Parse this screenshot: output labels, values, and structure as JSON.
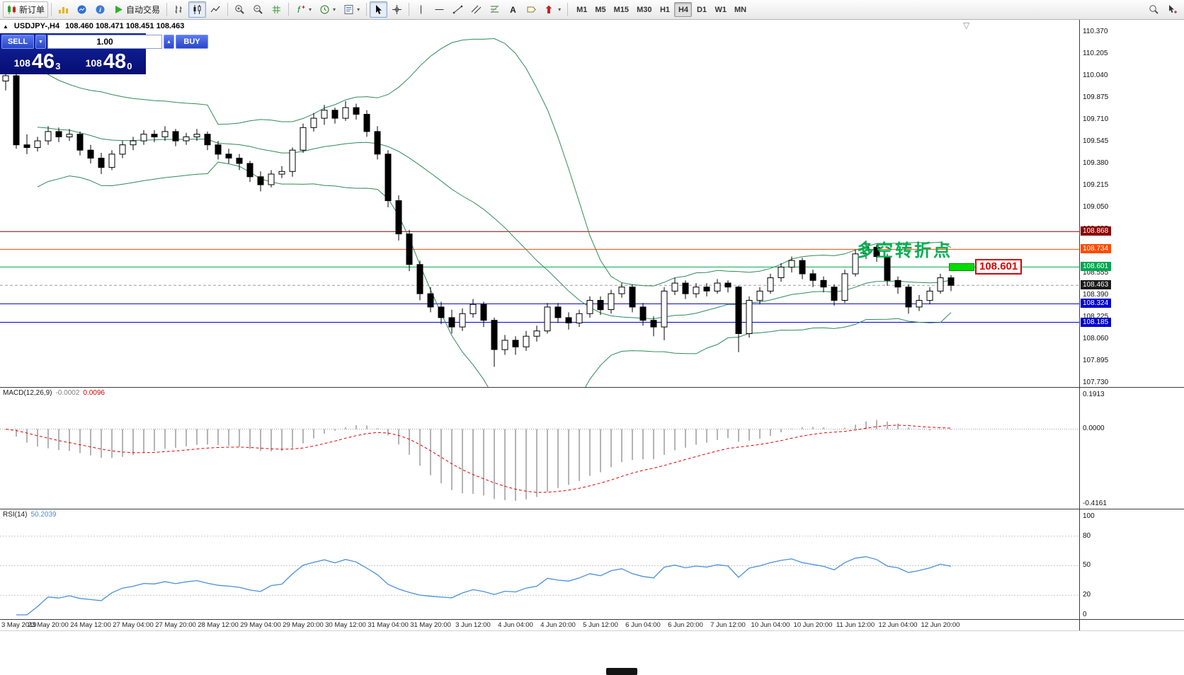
{
  "toolbar": {
    "new_order_label": "新订单",
    "autotrading_label": "自动交易",
    "timeframes": [
      "M1",
      "M5",
      "M15",
      "M30",
      "H1",
      "H4",
      "D1",
      "W1",
      "MN"
    ],
    "active_timeframe": "H4"
  },
  "quote_bar": {
    "arrow": "▲",
    "symbol": "USDJPY-,H4",
    "ohlc": "108.460 108.471 108.451 108.463"
  },
  "trade_panel": {
    "sell_label": "SELL",
    "buy_label": "BUY",
    "volume": "1.00",
    "sell_price_prefix": "108",
    "sell_price_big": "46",
    "sell_price_sup": "3",
    "buy_price_prefix": "108",
    "buy_price_big": "48",
    "buy_price_sup": "0"
  },
  "annotations": {
    "turning_point_text": "多空转折点",
    "turning_point_color": "#00b050",
    "price_tag_text": "108.601"
  },
  "price_axis": {
    "ticks": [
      "110.370",
      "110.205",
      "110.040",
      "109.875",
      "109.710",
      "109.545",
      "109.380",
      "109.215",
      "109.050",
      "108.885",
      "108.720",
      "108.555",
      "108.390",
      "108.225",
      "108.060",
      "107.895",
      "107.730"
    ]
  },
  "hlines": [
    {
      "price": 108.868,
      "label": "108.868",
      "color": "#8b0000"
    },
    {
      "price": 108.734,
      "label": "108.734",
      "color": "#ff4a00"
    },
    {
      "price": 108.601,
      "label": "108.601",
      "color": "#00a651"
    },
    {
      "price": 108.324,
      "label": "108.324",
      "color": "#0000cc"
    },
    {
      "price": 108.185,
      "label": "108.185",
      "color": "#0000cc"
    }
  ],
  "current_price": {
    "value": 108.463,
    "label": "108.463",
    "tag_color": "#1a1a1a"
  },
  "macd_panel": {
    "label": "MACD(12,26,9)",
    "value_main": "-0.0002",
    "value_signal": "0.0096",
    "axis_labels": [
      "0.1913",
      "0.0000",
      "-0.4161"
    ],
    "range_max": 0.1913,
    "range_min": -0.4161,
    "params": {
      "fast": 12,
      "slow": 26,
      "signal": 9
    }
  },
  "rsi_panel": {
    "label": "RSI(14)",
    "value": "50.2039",
    "axis_labels": [
      "100",
      "80",
      "50",
      "20",
      "0"
    ],
    "levels": [
      80,
      50,
      20
    ],
    "period": 14
  },
  "time_axis": {
    "labels": [
      "3 May 2019",
      "23 May 20:00",
      "24 May 12:00",
      "27 May 04:00",
      "27 May 20:00",
      "28 May 12:00",
      "29 May 04:00",
      "29 May 20:00",
      "30 May 12:00",
      "31 May 04:00",
      "31 May 20:00",
      "3 Jun 12:00",
      "4 Jun 04:00",
      "4 Jun 20:00",
      "5 Jun 12:00",
      "6 Jun 04:00",
      "6 Jun 20:00",
      "7 Jun 12:00",
      "10 Jun 04:00",
      "10 Jun 20:00",
      "11 Jun 12:00",
      "12 Jun 04:00",
      "12 Jun 20:00"
    ]
  },
  "chart_data": {
    "type": "candlestick",
    "symbol": "USDJPY",
    "timeframe": "H4",
    "price_range": [
      107.73,
      110.37
    ],
    "overlays": {
      "bollinger": {
        "period": 20,
        "deviation": 2,
        "color": "#2e8b57"
      }
    },
    "candles_ohlc": [
      [
        110.0,
        110.07,
        109.93,
        110.04
      ],
      [
        110.04,
        110.06,
        109.49,
        109.52
      ],
      [
        109.52,
        109.6,
        109.45,
        109.5
      ],
      [
        109.5,
        109.58,
        109.47,
        109.55
      ],
      [
        109.55,
        109.66,
        109.52,
        109.62
      ],
      [
        109.62,
        109.65,
        109.54,
        109.58
      ],
      [
        109.58,
        109.64,
        109.55,
        109.6
      ],
      [
        109.6,
        109.62,
        109.44,
        109.48
      ],
      [
        109.48,
        109.52,
        109.38,
        109.42
      ],
      [
        109.42,
        109.46,
        109.3,
        109.35
      ],
      [
        109.35,
        109.48,
        109.33,
        109.45
      ],
      [
        109.45,
        109.55,
        109.42,
        109.52
      ],
      [
        109.52,
        109.58,
        109.48,
        109.55
      ],
      [
        109.55,
        109.63,
        109.52,
        109.6
      ],
      [
        109.6,
        109.63,
        109.54,
        109.58
      ],
      [
        109.58,
        109.66,
        109.55,
        109.62
      ],
      [
        109.62,
        109.64,
        109.51,
        109.55
      ],
      [
        109.55,
        109.61,
        109.52,
        109.58
      ],
      [
        109.58,
        109.64,
        109.55,
        109.6
      ],
      [
        109.6,
        109.62,
        109.48,
        109.52
      ],
      [
        109.52,
        109.55,
        109.41,
        109.45
      ],
      [
        109.45,
        109.49,
        109.38,
        109.42
      ],
      [
        109.42,
        109.45,
        109.33,
        109.38
      ],
      [
        109.38,
        109.4,
        109.24,
        109.28
      ],
      [
        109.28,
        109.32,
        109.17,
        109.22
      ],
      [
        109.22,
        109.33,
        109.2,
        109.3
      ],
      [
        109.3,
        109.36,
        109.27,
        109.32
      ],
      [
        109.32,
        109.5,
        109.28,
        109.48
      ],
      [
        109.48,
        109.68,
        109.46,
        109.65
      ],
      [
        109.65,
        109.76,
        109.62,
        109.72
      ],
      [
        109.72,
        109.82,
        109.67,
        109.78
      ],
      [
        109.78,
        109.8,
        109.68,
        109.72
      ],
      [
        109.72,
        109.85,
        109.7,
        109.8
      ],
      [
        109.8,
        109.83,
        109.71,
        109.75
      ],
      [
        109.75,
        109.78,
        109.58,
        109.62
      ],
      [
        109.62,
        109.66,
        109.41,
        109.45
      ],
      [
        109.45,
        109.48,
        109.05,
        109.1
      ],
      [
        109.1,
        109.14,
        108.8,
        108.85
      ],
      [
        108.85,
        108.88,
        108.57,
        108.62
      ],
      [
        108.62,
        108.65,
        108.35,
        108.4
      ],
      [
        108.4,
        108.45,
        108.26,
        108.3
      ],
      [
        108.3,
        108.34,
        108.17,
        108.22
      ],
      [
        108.22,
        108.28,
        108.1,
        108.15
      ],
      [
        108.15,
        108.29,
        108.12,
        108.25
      ],
      [
        108.25,
        108.36,
        108.22,
        108.32
      ],
      [
        108.32,
        108.34,
        108.15,
        108.2
      ],
      [
        108.2,
        108.22,
        107.85,
        107.98
      ],
      [
        107.98,
        108.09,
        107.94,
        108.05
      ],
      [
        108.05,
        108.08,
        107.94,
        108.0
      ],
      [
        108.0,
        108.12,
        107.97,
        108.08
      ],
      [
        108.08,
        108.16,
        108.04,
        108.12
      ],
      [
        108.12,
        108.33,
        108.1,
        108.3
      ],
      [
        108.3,
        108.33,
        108.18,
        108.22
      ],
      [
        108.22,
        108.26,
        108.13,
        108.18
      ],
      [
        108.18,
        108.28,
        108.15,
        108.25
      ],
      [
        108.25,
        108.38,
        108.22,
        108.35
      ],
      [
        108.35,
        108.38,
        108.24,
        108.28
      ],
      [
        108.28,
        108.43,
        108.25,
        108.4
      ],
      [
        108.4,
        108.48,
        108.37,
        108.45
      ],
      [
        108.45,
        108.47,
        108.26,
        108.3
      ],
      [
        108.3,
        108.33,
        108.16,
        108.2
      ],
      [
        108.2,
        108.23,
        108.08,
        108.15
      ],
      [
        108.15,
        108.45,
        108.05,
        108.42
      ],
      [
        108.42,
        108.52,
        108.39,
        108.48
      ],
      [
        108.48,
        108.5,
        108.36,
        108.4
      ],
      [
        108.4,
        108.48,
        108.37,
        108.45
      ],
      [
        108.45,
        108.48,
        108.38,
        108.42
      ],
      [
        108.42,
        108.51,
        108.4,
        108.48
      ],
      [
        108.48,
        108.5,
        108.41,
        108.45
      ],
      [
        108.45,
        108.46,
        107.96,
        108.1
      ],
      [
        108.1,
        108.38,
        108.07,
        108.35
      ],
      [
        108.35,
        108.45,
        108.32,
        108.42
      ],
      [
        108.42,
        108.55,
        108.4,
        108.52
      ],
      [
        108.52,
        108.63,
        108.49,
        108.6
      ],
      [
        108.6,
        108.68,
        108.56,
        108.65
      ],
      [
        108.65,
        108.67,
        108.51,
        108.55
      ],
      [
        108.55,
        108.58,
        108.45,
        108.5
      ],
      [
        108.5,
        108.53,
        108.41,
        108.45
      ],
      [
        108.45,
        108.47,
        108.31,
        108.35
      ],
      [
        108.35,
        108.58,
        108.33,
        108.55
      ],
      [
        108.55,
        108.73,
        108.53,
        108.7
      ],
      [
        108.7,
        108.8,
        108.66,
        108.75
      ],
      [
        108.75,
        108.77,
        108.64,
        108.68
      ],
      [
        108.68,
        108.7,
        108.46,
        108.5
      ],
      [
        108.5,
        108.53,
        108.4,
        108.45
      ],
      [
        108.45,
        108.47,
        108.25,
        108.3
      ],
      [
        108.3,
        108.39,
        108.27,
        108.35
      ],
      [
        108.35,
        108.45,
        108.32,
        108.42
      ],
      [
        108.42,
        108.55,
        108.4,
        108.52
      ],
      [
        108.52,
        108.54,
        108.42,
        108.463
      ]
    ]
  }
}
